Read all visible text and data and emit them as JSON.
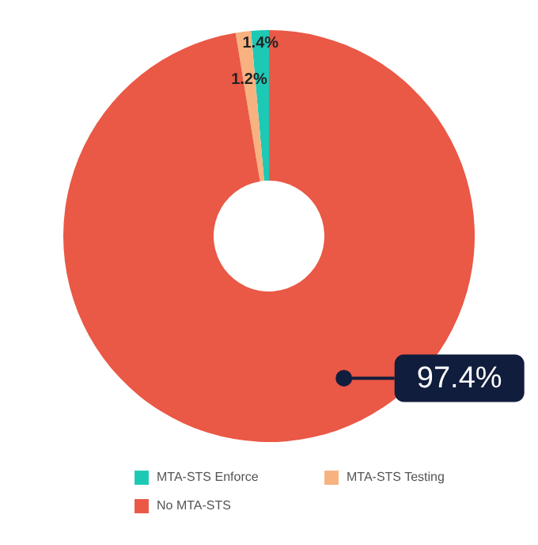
{
  "chart_data": {
    "type": "donut",
    "categories": [
      "MTA-STS Enforce",
      "MTA-STS Testing",
      "No MTA-STS"
    ],
    "values": [
      1.4,
      1.2,
      97.4
    ],
    "colors": [
      "#1cc9b5",
      "#f7b27f",
      "#ea5846"
    ],
    "value_labels": [
      "1.4%",
      "1.2%",
      "97.4%"
    ],
    "legend": "bottom"
  }
}
